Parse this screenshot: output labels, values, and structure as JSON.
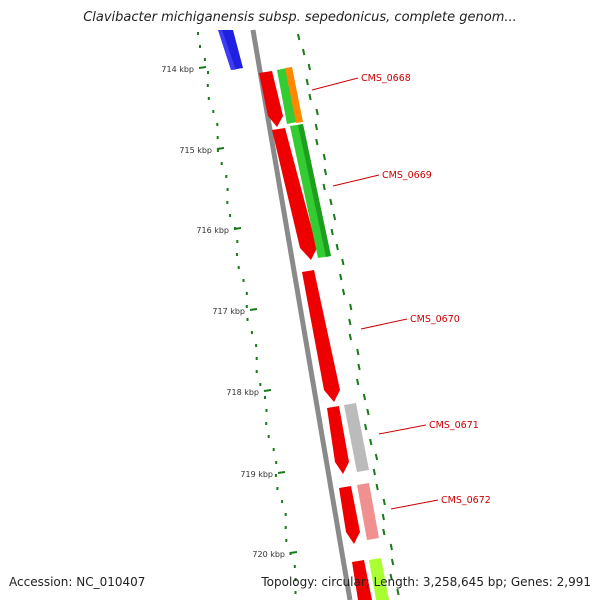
{
  "title": "Clavibacter michiganensis subsp. sepedonicus, complete genom...",
  "footer": {
    "accession": "Accession: NC_010407",
    "summary": "Topology: circular; Length: 3,258,645 bp; Genes: 2,991"
  },
  "colors": {
    "backbone": "#888888",
    "forward_cds": "#ee0000",
    "blue_feature": "#1f1fe0",
    "gc_plot": "#1a7a1a",
    "label": "#cc0000"
  },
  "ruler": [
    {
      "label": "714 kbp",
      "kbp": 714
    },
    {
      "label": "715 kbp",
      "kbp": 715
    },
    {
      "label": "716 kbp",
      "kbp": 716
    },
    {
      "label": "717 kbp",
      "kbp": 717
    },
    {
      "label": "718 kbp",
      "kbp": 718
    },
    {
      "label": "719 kbp",
      "kbp": 719
    },
    {
      "label": "720 kbp",
      "kbp": 720
    }
  ],
  "gene_labels": [
    {
      "name": "CMS_0668"
    },
    {
      "name": "CMS_0669"
    },
    {
      "name": "CMS_0670"
    },
    {
      "name": "CMS_0671"
    },
    {
      "name": "CMS_0672"
    }
  ]
}
